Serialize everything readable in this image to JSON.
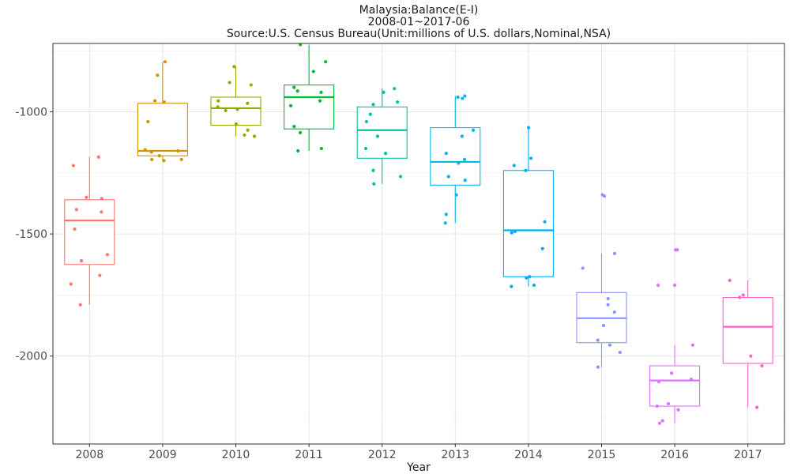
{
  "chart_data": {
    "type": "box",
    "title_lines": [
      "Malaysia:Balance(E-I)",
      "2008-01~2017-06",
      "Source:U.S. Census Bureau(Unit:millions of U.S. dollars,Nominal,NSA)"
    ],
    "xlabel": "Year",
    "ylabel": "",
    "ylim": [
      -2360,
      -720
    ],
    "y_ticks": [
      -1000,
      -1500,
      -2000
    ],
    "y_tick_labels": [
      "-1000",
      "-1500",
      "-2000"
    ],
    "grid": true,
    "categories": [
      "2008",
      "2009",
      "2010",
      "2011",
      "2012",
      "2013",
      "2014",
      "2015",
      "2016",
      "2017"
    ],
    "series": [
      {
        "name": "2008",
        "color": "#F8766D",
        "box": {
          "min": -1790,
          "q1": -1625,
          "median": -1445,
          "q3": -1360,
          "max": -1185
        },
        "points": [
          -1185,
          -1220,
          -1350,
          -1355,
          -1400,
          -1410,
          -1480,
          -1585,
          -1610,
          -1670,
          -1705,
          -1790
        ]
      },
      {
        "name": "2009",
        "color": "#D39200",
        "box": {
          "min": -1200,
          "q1": -1180,
          "median": -1160,
          "q3": -965,
          "max": -795
        },
        "points": [
          -795,
          -850,
          -955,
          -960,
          -1040,
          -1155,
          -1160,
          -1165,
          -1180,
          -1195,
          -1195,
          -1200
        ]
      },
      {
        "name": "2010",
        "color": "#93AA00",
        "box": {
          "min": -1100,
          "q1": -1055,
          "median": -985,
          "q3": -940,
          "max": -815
        },
        "points": [
          -815,
          -880,
          -890,
          -955,
          -965,
          -980,
          -990,
          -995,
          -1050,
          -1075,
          -1095,
          -1100
        ]
      },
      {
        "name": "2011",
        "color": "#00BA38",
        "box": {
          "min": -1160,
          "q1": -1070,
          "median": -940,
          "q3": -890,
          "max": -725
        },
        "points": [
          -725,
          -795,
          -835,
          -900,
          -915,
          -920,
          -955,
          -975,
          -1060,
          -1085,
          -1150,
          -1160
        ]
      },
      {
        "name": "2012",
        "color": "#00C19F",
        "box": {
          "min": -1295,
          "q1": -1190,
          "median": -1075,
          "q3": -980,
          "max": -905
        },
        "points": [
          -905,
          -920,
          -960,
          -970,
          -1010,
          -1040,
          -1100,
          -1150,
          -1170,
          -1240,
          -1265,
          -1295
        ]
      },
      {
        "name": "2013",
        "color": "#00B9E3",
        "box": {
          "min": -1455,
          "q1": -1300,
          "median": -1205,
          "q3": -1065,
          "max": -935
        },
        "points": [
          -935,
          -940,
          -945,
          -1075,
          -1100,
          -1170,
          -1195,
          -1210,
          -1265,
          -1280,
          -1340,
          -1420,
          -1455
        ]
      },
      {
        "name": "2014",
        "color": "#00ADFA",
        "box": {
          "min": -1715,
          "q1": -1675,
          "median": -1485,
          "q3": -1240,
          "max": -1065
        },
        "points": [
          -1065,
          -1190,
          -1220,
          -1240,
          -1450,
          -1490,
          -1495,
          -1560,
          -1675,
          -1680,
          -1710,
          -1715
        ]
      },
      {
        "name": "2015",
        "color": "#8B93FF",
        "box": {
          "min": -2045,
          "q1": -1945,
          "median": -1845,
          "q3": -1740,
          "max": -1580
        },
        "points": [
          -1340,
          -1345,
          -1580,
          -1640,
          -1765,
          -1790,
          -1820,
          -1875,
          -1935,
          -1955,
          -1985,
          -2045
        ]
      },
      {
        "name": "2016",
        "color": "#DB72FB",
        "box": {
          "min": -2275,
          "q1": -2205,
          "median": -2100,
          "q3": -2040,
          "max": -1955
        },
        "points": [
          -1565,
          -1565,
          -1710,
          -1710,
          -1955,
          -2070,
          -2095,
          -2105,
          -2195,
          -2205,
          -2220,
          -2265,
          -2275
        ]
      },
      {
        "name": "2017",
        "color": "#FF61C3",
        "box": {
          "min": -2210,
          "q1": -2030,
          "median": -1880,
          "q3": -1760,
          "max": -1690
        },
        "points": [
          -1690,
          -1750,
          -1760,
          -2000,
          -2040,
          -2210
        ]
      }
    ]
  }
}
